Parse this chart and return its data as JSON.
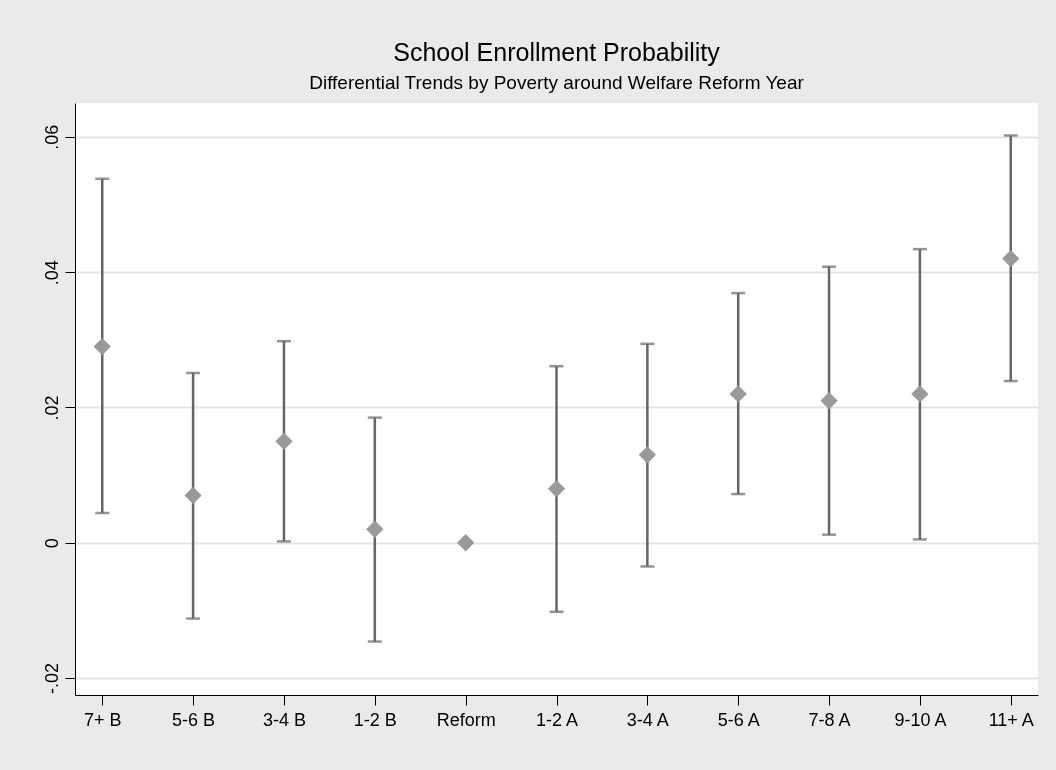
{
  "chart_data": {
    "type": "scatter",
    "title": "School Enrollment Probability",
    "subtitle": "Differential Trends by Poverty around Welfare Reform Year",
    "categories": [
      "7+ B",
      "5-6 B",
      "3-4 B",
      "1-2 B",
      "Reform",
      "1-2 A",
      "3-4 A",
      "5-6 A",
      "7-8 A",
      "9-10 A",
      "11+ A"
    ],
    "values": [
      0.029,
      0.007,
      0.015,
      0.002,
      0,
      0.008,
      0.013,
      0.022,
      0.021,
      0.022,
      0.042
    ],
    "errors": [
      [
        0.0044,
        0.0538
      ],
      [
        -0.0112,
        0.0251
      ],
      [
        0.0002,
        0.0298
      ],
      [
        -0.0146,
        0.0185
      ],
      null,
      [
        -0.0102,
        0.0261
      ],
      [
        -0.0035,
        0.0294
      ],
      [
        0.0072,
        0.0369
      ],
      [
        0.0012,
        0.0408
      ],
      [
        0.0005,
        0.0434
      ],
      [
        0.0239,
        0.0602
      ]
    ],
    "color": "#999999",
    "marker": "diamond",
    "ylim": [
      -0.0225,
      0.065
    ],
    "yticks": [
      {
        "value": -0.02,
        "label": "-.02"
      },
      {
        "value": 0,
        "label": "0"
      },
      {
        "value": 0.02,
        "label": ".02"
      },
      {
        "value": 0.04,
        "label": ".04"
      },
      {
        "value": 0.06,
        "label": ".06"
      }
    ],
    "grid": "y"
  }
}
